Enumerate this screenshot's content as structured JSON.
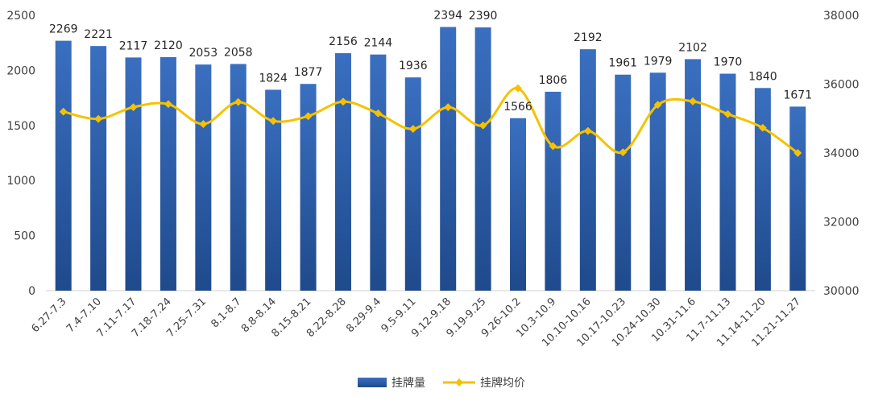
{
  "chart_data": {
    "type": "bar",
    "categories": [
      "6.27-7.3",
      "7.4-7.10",
      "7.11-7.17",
      "7.18-7.24",
      "7.25-7.31",
      "8.1-8.7",
      "8.8-8.14",
      "8.15-8.21",
      "8.22-8.28",
      "8.29-9.4",
      "9.5-9.11",
      "9.12-9.18",
      "9.19-9.25",
      "9.26-10.2",
      "10.3-10.9",
      "10.10-10.16",
      "10.17-10.23",
      "10.24-10.30",
      "10.31-11.6",
      "11.7-11.13",
      "11.14-11.20",
      "11.21-11.27"
    ],
    "series": [
      {
        "name": "挂牌量",
        "type": "bar",
        "axis": "left",
        "color": "#2e5fa8",
        "values": [
          2269,
          2221,
          2117,
          2120,
          2053,
          2058,
          1824,
          1877,
          2156,
          2144,
          1936,
          2394,
          2390,
          1566,
          1806,
          2192,
          1961,
          1979,
          2102,
          1970,
          1840,
          1671
        ]
      },
      {
        "name": "挂牌均价",
        "type": "line",
        "axis": "right",
        "color": "#f5c200",
        "values": [
          35200,
          34990,
          35330,
          35420,
          34840,
          35480,
          34930,
          35070,
          35490,
          35150,
          34700,
          35330,
          34800,
          35880,
          34200,
          34640,
          34020,
          35400,
          35500,
          35130,
          34730,
          34000
        ]
      }
    ],
    "left_axis": {
      "min": 0,
      "max": 2500,
      "ticks": [
        0,
        500,
        1000,
        1500,
        2000,
        2500
      ]
    },
    "right_axis": {
      "min": 30000,
      "max": 38000,
      "ticks": [
        30000,
        32000,
        34000,
        36000,
        38000
      ]
    },
    "grid": false,
    "legend": {
      "position": "bottom-center",
      "entries": [
        "挂牌量",
        "挂牌均价"
      ]
    },
    "title": "",
    "xlabel": "",
    "ylabel": ""
  }
}
